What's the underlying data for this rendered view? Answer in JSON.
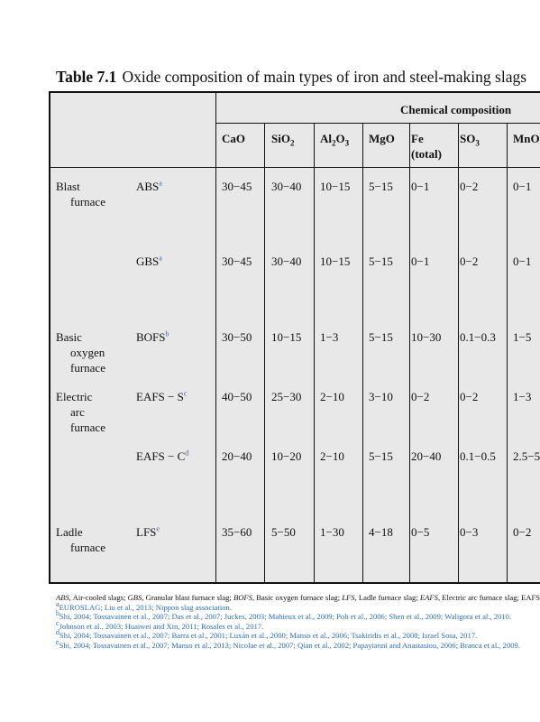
{
  "title": {
    "number": "Table 7.1",
    "text": "Oxide composition of main types of iron and steel-making slags"
  },
  "group_header": "Chemical composition",
  "columns": [
    {
      "base": "CaO",
      "sub": ""
    },
    {
      "base": "SiO",
      "sub": "2"
    },
    {
      "base": "Al",
      "sub": "2",
      "base2": "O",
      "sub2": "3"
    },
    {
      "base": "MgO",
      "sub": ""
    },
    {
      "base": "Fe",
      "line2": "(total)"
    },
    {
      "base": "SO",
      "sub": "3"
    },
    {
      "base": "MnO",
      "sub": ""
    }
  ],
  "rows": [
    {
      "furnace": [
        "Blast",
        "furnace"
      ],
      "slag": "ABS",
      "sup": "a",
      "values": [
        "30−45",
        "30−40",
        "10−15",
        "5−15",
        "0−1",
        "0−2",
        "0−1"
      ]
    },
    {
      "furnace": [],
      "slag": "GBS",
      "sup": "a",
      "values": [
        "30−45",
        "30−40",
        "10−15",
        "5−15",
        "0−1",
        "0−2",
        "0−1"
      ]
    },
    {
      "furnace": [
        "Basic",
        "oxygen",
        "furnace"
      ],
      "slag": "BOFS",
      "sup": "b",
      "values": [
        "30−50",
        "10−15",
        "1−3",
        "5−15",
        "10−30",
        "0.1−0.3",
        "1−5"
      ]
    },
    {
      "furnace": [
        "Electric",
        "arc",
        "furnace"
      ],
      "slag": "EAFS − S",
      "sup": "c",
      "values": [
        "40−50",
        "25−30",
        "2−10",
        "3−10",
        "0−2",
        "0−2",
        "1−3"
      ]
    },
    {
      "furnace": [],
      "slag": "EAFS − C",
      "sup": "d",
      "values": [
        "20−40",
        "10−20",
        "2−10",
        "5−15",
        "20−40",
        "0.1−0.5",
        "2.5−5"
      ]
    },
    {
      "furnace": [
        "Ladle",
        "furnace"
      ],
      "slag": "LFS",
      "sup": "e",
      "values": [
        "35−60",
        "5−50",
        "1−30",
        "4−18",
        "0−5",
        "0−3",
        "0−2"
      ]
    }
  ],
  "footnotes": {
    "abbrev": [
      {
        "abbr": "ABS",
        "text": ", Air-cooled slags; "
      },
      {
        "abbr": "GBS",
        "text": ", Granular blast furnace slag; "
      },
      {
        "abbr": "BOFS",
        "text": ", Basic oxygen furnace slag; "
      },
      {
        "abbr": "LFS",
        "text": ", Ladle furnace slag; "
      },
      {
        "abbr": "EAFS",
        "text": ", Electric arc furnace slag; EAFS − S, stainless steel; EAFS − C, carbon steel."
      }
    ],
    "refs": [
      {
        "mark": "a",
        "text": "EUROSLAG; Liu et al., 2013; Nippon slag association."
      },
      {
        "mark": "b",
        "text": "Shi, 2004; Tossavainen et al., 2007; Das et al., 2007; Juckes, 2003; Mahieux et al., 2009; Poh et al., 2006; Shen et al., 2009; Waligora et al., 2010."
      },
      {
        "mark": "c",
        "text": "Johnson et al., 2003; Huaiwei and Xin, 2011; Rosales et al., 2017."
      },
      {
        "mark": "d",
        "text": "Shi, 2004; Tossavainen et al., 2007; Barra et al., 2001; Luxán et al., 2000; Manso et al., 2006; Tsakiridis et al., 2008; Israel Sosa, 2017."
      },
      {
        "mark": "e",
        "text": "Shi, 2004; Tossavainen et al., 2007; Manso et al., 2013; Nicolae et al., 2007; Qian et al., 2002; Papayianni and Anastasiou, 2006; Branca et al., 2009."
      }
    ]
  }
}
